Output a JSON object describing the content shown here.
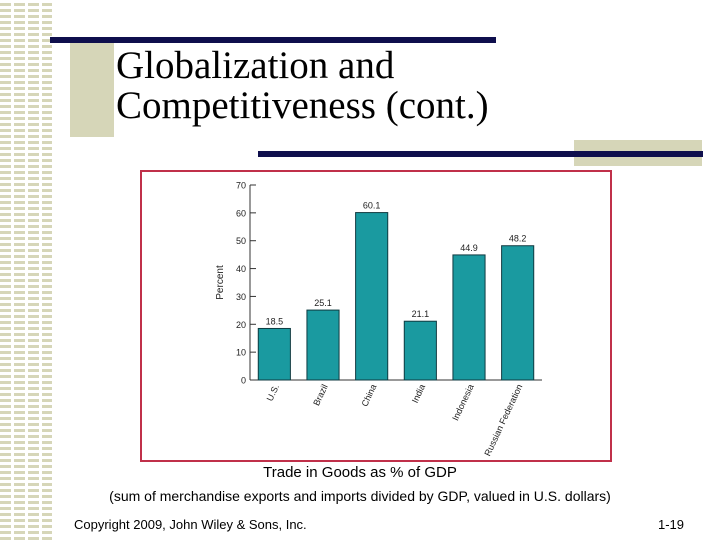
{
  "slide": {
    "title_line1": "Globalization and",
    "title_line2": "Competitiveness (cont.)",
    "caption_title": "Trade in Goods as % of GDP",
    "caption_sub": "(sum of merchandise exports and imports divided by GDP, valued in U.S. dollars)",
    "copyright": "Copyright 2009, John Wiley & Sons, Inc.",
    "page_number": "1-19"
  },
  "colors": {
    "bar": "#1a9aa0",
    "bar_edge": "#0f3a40",
    "frame": "#c0304a",
    "rule": "#0f0f4d",
    "accent_box": "#d6d6b8"
  },
  "chart_data": {
    "type": "bar",
    "title": "Trade in Goods as % of GDP",
    "xlabel": "",
    "ylabel": "Percent",
    "ylim": [
      0,
      70
    ],
    "yticks": [
      0,
      10,
      20,
      30,
      40,
      50,
      60,
      70
    ],
    "categories": [
      "U.S.",
      "Brazil",
      "China",
      "India",
      "Indonesia",
      "Russian Federation"
    ],
    "values": [
      18.5,
      25.1,
      60.1,
      21.1,
      44.9,
      48.2
    ],
    "value_labels": [
      "18.5",
      "25.1",
      "60.1",
      "21.1",
      "44.9",
      "48.2"
    ],
    "grid": false,
    "legend": "none"
  }
}
